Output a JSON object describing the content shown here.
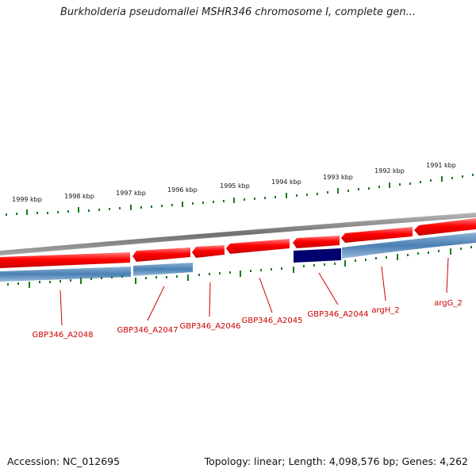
{
  "title": "Burkholderia pseudomallei MSHR346 chromosome I, complete gen...",
  "footer": {
    "accession": "Accession: NC_012695",
    "stats": "Topology: linear; Length: 4,098,576 bp; Genes: 4,262"
  },
  "scale_labels": [
    "1999 kbp",
    "1998 kbp",
    "1997 kbp",
    "1996 kbp",
    "1995 kbp",
    "1994 kbp",
    "1993 kbp",
    "1992 kbp",
    "1991 kbp"
  ],
  "gene_labels": [
    "GBP346_A2048",
    "GBP346_A2047",
    "GBP346_A2046",
    "GBP346_A2045",
    "GBP346_A2044",
    "argH_2",
    "argG_2"
  ],
  "colors": {
    "forward_gene": "#ff0000",
    "highlight_gene": "#00006e",
    "reverse_band": "#4a80b4",
    "backbone": "#8a8a8a",
    "tick": "#1a7a1a",
    "label": "#cc0000"
  }
}
